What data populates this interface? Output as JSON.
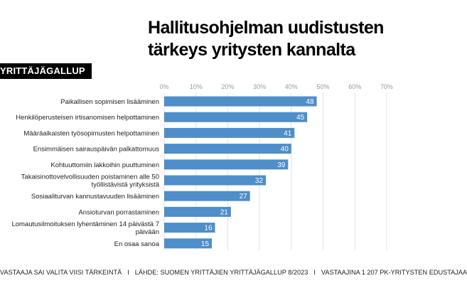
{
  "title_line1": "Hallitusohjelman uudistusten",
  "title_line2": "tärkeys yritysten kannalta",
  "badge": "YRITTÄJÄGALLUP",
  "footer": {
    "part1": "VASTAAJA SAI VALITA VIISI TÄRKEINTÄ",
    "part2": "LÄHDE: SUOMEN YRITTÄJIEN YRITTÄJÄGALLUP 8/2023",
    "part3": "VASTAAJINA 1 207 PK-YRITYSTEN EDUSTAJAA",
    "separator": "I"
  },
  "colors": {
    "bar": "#4e8ec9",
    "grid": "#e2e2e2",
    "tick": "#9a9a9a",
    "text": "#222222"
  },
  "chart_data": {
    "type": "bar",
    "orientation": "horizontal",
    "xlim": [
      0,
      70
    ],
    "ticks": [
      "0%",
      "10%",
      "20%",
      "30%",
      "40%",
      "50%",
      "60%",
      "70%"
    ],
    "tick_values": [
      0,
      10,
      20,
      30,
      40,
      50,
      60,
      70
    ],
    "grid": true,
    "categories": [
      [
        "Paikallisen sopimisen lisääminen"
      ],
      [
        "Henkilöperusteisen irtisanomisen helpottaminen"
      ],
      [
        "Määräaikaisten työsopimusten helpottaminen"
      ],
      [
        "Ensimmäisen sairauspäivän palkattomuus"
      ],
      [
        "Kohtuuttomiin lakkoihin puuttuminen"
      ],
      [
        "Takaisinottovelvollisuuden poistaminen alle 50",
        "työllistävistä yrityksistä"
      ],
      [
        "Sosiaaliturvan kannustavuuden lisääminen"
      ],
      [
        "Ansioturvan porrastaminen"
      ],
      [
        "Lomautusilmoituksen lyhentäminen 14 päivästä 7",
        "päivään"
      ],
      [
        "En osaa sanoa"
      ]
    ],
    "values": [
      48,
      45,
      41,
      40,
      39,
      32,
      27,
      21,
      16,
      15
    ]
  }
}
